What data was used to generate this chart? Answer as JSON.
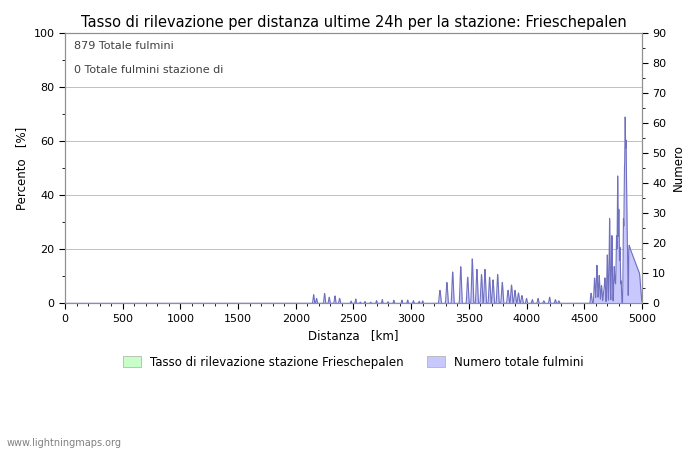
{
  "title": "Tasso di rilevazione per distanza ultime 24h per la stazione: Frieschepalen",
  "xlabel": "Distanza   [km]",
  "ylabel_left": "Percento   [%]",
  "ylabel_right": "Numero",
  "annotation_line1": "879 Totale fulmini",
  "annotation_line2": "0 Totale fulmini stazione di",
  "watermark": "www.lightningmaps.org",
  "legend_label1": "Tasso di rilevazione stazione Frieschepalen",
  "legend_label2": "Numero totale fulmini",
  "xlim": [
    0,
    5000
  ],
  "ylim_left": [
    0,
    100
  ],
  "ylim_right": [
    0,
    90
  ],
  "yticks_left": [
    0,
    20,
    40,
    60,
    80,
    100
  ],
  "yticks_right": [
    0,
    10,
    20,
    30,
    40,
    50,
    60,
    70,
    80,
    90
  ],
  "xticks": [
    0,
    500,
    1000,
    1500,
    2000,
    2500,
    3000,
    3500,
    4000,
    4500,
    5000
  ],
  "minor_yticks_left": [
    10,
    30,
    50,
    70,
    90
  ],
  "minor_yticks_right": [
    5,
    15,
    25,
    35,
    45,
    55,
    65,
    75,
    85
  ],
  "fill_color_blue": "#c8c8ff",
  "line_color_blue": "#7070c0",
  "fill_color_green": "#c8ffc8",
  "line_color_green": "#80c080",
  "bg_color": "#ffffff",
  "grid_color": "#c0c0c0",
  "title_fontsize": 10.5,
  "axis_fontsize": 8.5,
  "tick_fontsize": 8,
  "annotation_fontsize": 8
}
